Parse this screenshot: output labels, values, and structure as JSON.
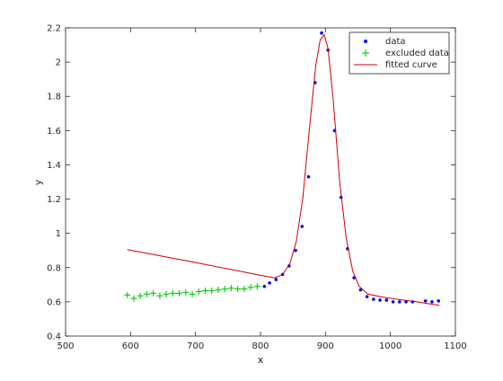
{
  "chart_data": {
    "type": "scatter",
    "xlabel": "x",
    "ylabel": "y",
    "xlim": [
      500,
      1100
    ],
    "ylim": [
      0.4,
      2.2
    ],
    "xticks": [
      "500",
      "600",
      "700",
      "800",
      "900",
      "1000",
      "1100"
    ],
    "yticks": [
      "0.4",
      "0.6",
      "0.8",
      "1",
      "1.2",
      "1.4",
      "1.6",
      "1.8",
      "2",
      "2.2"
    ],
    "grid": false,
    "legend_position": "top-right",
    "legend": [
      "data",
      "excluded data",
      "fitted curve"
    ],
    "colors": {
      "data": "#0000ff",
      "excluded": "#00cc00",
      "fit": "#cc0000"
    },
    "series": [
      {
        "name": "data",
        "marker": "dot",
        "x": [
          806,
          814,
          824,
          834,
          844,
          854,
          864,
          874,
          884,
          894,
          904,
          914,
          924,
          934,
          944,
          954,
          964,
          974,
          984,
          994,
          1004,
          1014,
          1024,
          1034,
          1054,
          1064,
          1074
        ],
        "y": [
          0.69,
          0.71,
          0.73,
          0.76,
          0.81,
          0.9,
          1.04,
          1.33,
          1.88,
          2.17,
          2.07,
          1.6,
          1.21,
          0.91,
          0.74,
          0.67,
          0.63,
          0.615,
          0.61,
          0.61,
          0.6,
          0.6,
          0.6,
          0.6,
          0.605,
          0.6,
          0.605
        ]
      },
      {
        "name": "excluded data",
        "marker": "plus",
        "x": [
          595,
          605,
          615,
          625,
          635,
          645,
          655,
          665,
          675,
          685,
          695,
          705,
          715,
          725,
          735,
          745,
          755,
          765,
          775,
          785,
          795
        ],
        "y": [
          0.64,
          0.62,
          0.635,
          0.645,
          0.65,
          0.635,
          0.645,
          0.65,
          0.65,
          0.655,
          0.645,
          0.66,
          0.665,
          0.665,
          0.67,
          0.675,
          0.68,
          0.675,
          0.675,
          0.685,
          0.69
        ]
      },
      {
        "name": "fitted curve",
        "marker": "line",
        "x": [
          595,
          700,
          800,
          822,
          834,
          845,
          855,
          865,
          875,
          885,
          892,
          898,
          904,
          912,
          922,
          932,
          942,
          952,
          965,
          985,
          1010,
          1040,
          1075
        ],
        "y": [
          0.905,
          0.83,
          0.755,
          0.74,
          0.76,
          0.82,
          0.95,
          1.2,
          1.6,
          1.98,
          2.13,
          2.16,
          2.08,
          1.78,
          1.3,
          0.97,
          0.78,
          0.69,
          0.645,
          0.63,
          0.615,
          0.6,
          0.58
        ]
      }
    ]
  }
}
